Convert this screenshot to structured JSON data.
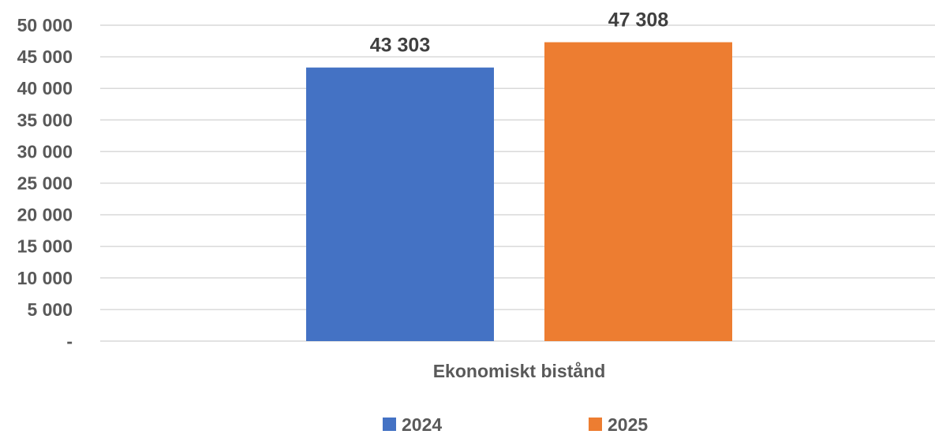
{
  "chart_data": {
    "type": "bar",
    "categories": [
      "Ekonomiskt bistånd"
    ],
    "series": [
      {
        "name": "2024",
        "values": [
          43303
        ],
        "color": "#4472c4",
        "label": "43 303"
      },
      {
        "name": "2025",
        "values": [
          47308
        ],
        "color": "#ed7d31",
        "label": "47 308"
      }
    ],
    "ylim": [
      0,
      50000
    ],
    "yticks": [
      0,
      5000,
      10000,
      15000,
      20000,
      25000,
      30000,
      35000,
      40000,
      45000,
      50000
    ],
    "ytick_labels": [
      "-",
      "5 000",
      "10 000",
      "15 000",
      "20 000",
      "25 000",
      "30 000",
      "35 000",
      "40 000",
      "45 000",
      "50 000"
    ],
    "grid": true,
    "legend_position": "bottom"
  }
}
